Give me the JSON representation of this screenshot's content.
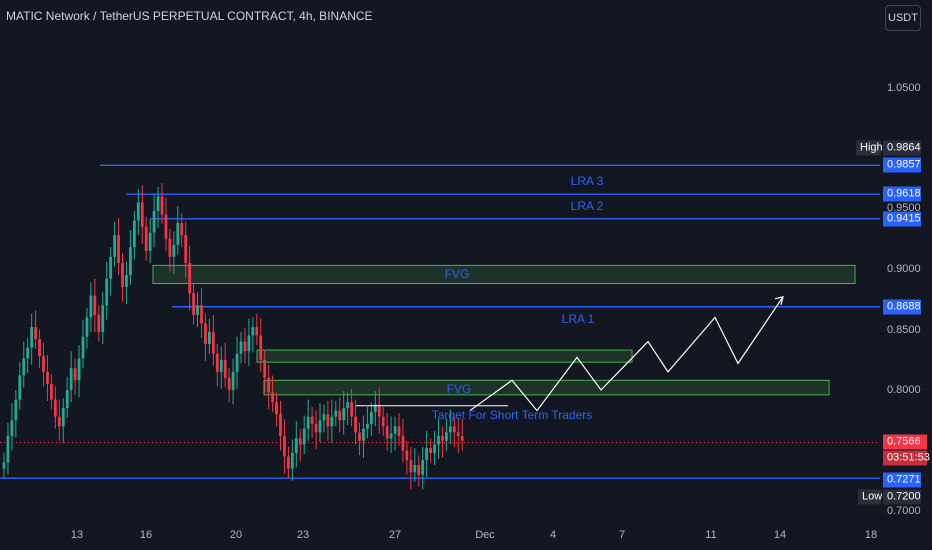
{
  "header": {
    "title": "MATIC Network / TetherUS PERPETUAL CONTRACT, 4h, BINANCE",
    "currency": "USDT"
  },
  "colors": {
    "background": "#131722",
    "up": "#22ab94",
    "down": "#f23645",
    "level": "#2962ff",
    "zone": "#4caf50",
    "projection": "#ffffff"
  },
  "axis": {
    "y_ticks": [
      "1.0500",
      "0.9500",
      "0.9000",
      "0.8500",
      "0.8000",
      "0.7000"
    ],
    "x_ticks": [
      "13",
      "16",
      "20",
      "23",
      "27",
      "Dec",
      "4",
      "7",
      "11",
      "14",
      "18"
    ]
  },
  "levels": [
    {
      "value": 0.9857,
      "label": "0.9857"
    },
    {
      "value": 0.9618,
      "label": "0.9618"
    },
    {
      "value": 0.9415,
      "label": "0.9415"
    },
    {
      "value": 0.8688,
      "label": "0.8688"
    },
    {
      "value": 0.7271,
      "label": "0.7271"
    }
  ],
  "high": {
    "label": "High",
    "value": "0.9864"
  },
  "low": {
    "label": "Low",
    "value": "0.7200"
  },
  "last_price": {
    "value": "0.7566",
    "countdown": "03:51:53"
  },
  "annotations": {
    "lra3": "LRA 3",
    "lra2": "LRA 2",
    "lra1": "LRA 1",
    "fvg_upper": "FVG",
    "fvg_lower": "FVG",
    "target": "Target For Short Term Traders"
  },
  "chart_data": {
    "type": "candlestick",
    "title": "MATIC Network / TetherUS PERPETUAL CONTRACT, 4h, BINANCE",
    "timeframe": "4h",
    "ylim": [
      0.695,
      1.09
    ],
    "x_range": [
      "Nov 10",
      "Dec 19"
    ],
    "zones": [
      {
        "label": "FVG",
        "from": 0.888,
        "to": 0.903,
        "start": "Nov 16",
        "end": "Dec 16"
      },
      {
        "label": "",
        "from": 0.823,
        "to": 0.833,
        "start": "Nov 20",
        "end": "Dec 7"
      },
      {
        "label": "FVG",
        "from": 0.796,
        "to": 0.808,
        "start": "Nov 20",
        "end": "Dec 16"
      }
    ],
    "projection_path": [
      0.783,
      0.808,
      0.783,
      0.827,
      0.8,
      0.84,
      0.815,
      0.86,
      0.822,
      0.877
    ],
    "candles_close": [
      0.74,
      0.762,
      0.775,
      0.792,
      0.812,
      0.826,
      0.835,
      0.852,
      0.842,
      0.828,
      0.815,
      0.805,
      0.792,
      0.778,
      0.77,
      0.785,
      0.8,
      0.818,
      0.808,
      0.826,
      0.844,
      0.86,
      0.878,
      0.862,
      0.848,
      0.87,
      0.892,
      0.91,
      0.928,
      0.905,
      0.885,
      0.895,
      0.918,
      0.94,
      0.955,
      0.935,
      0.915,
      0.93,
      0.948,
      0.96,
      0.945,
      0.925,
      0.91,
      0.92,
      0.938,
      0.928,
      0.905,
      0.88,
      0.862,
      0.87,
      0.855,
      0.838,
      0.848,
      0.83,
      0.815,
      0.825,
      0.81,
      0.8,
      0.815,
      0.83,
      0.84,
      0.832,
      0.845,
      0.852,
      0.845,
      0.825,
      0.81,
      0.798,
      0.79,
      0.78,
      0.762,
      0.745,
      0.735,
      0.748,
      0.76,
      0.755,
      0.768,
      0.778,
      0.772,
      0.765,
      0.775,
      0.78,
      0.77,
      0.778,
      0.783,
      0.775,
      0.785,
      0.79,
      0.778,
      0.765,
      0.758,
      0.768,
      0.772,
      0.782,
      0.788,
      0.778,
      0.77,
      0.76,
      0.764,
      0.77,
      0.762,
      0.75,
      0.742,
      0.732,
      0.738,
      0.73,
      0.742,
      0.752,
      0.748,
      0.755,
      0.762,
      0.758,
      0.765,
      0.77,
      0.765,
      0.762,
      0.758
    ]
  }
}
